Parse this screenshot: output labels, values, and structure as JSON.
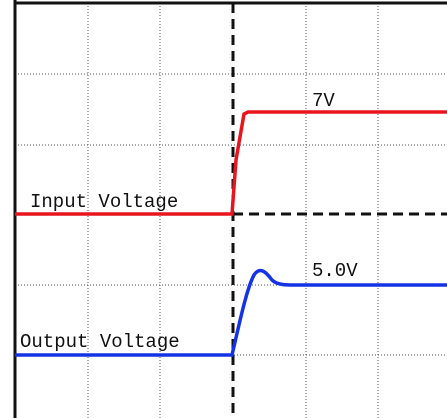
{
  "traces": [
    {
      "name": "Input Voltage",
      "level_label": "7V"
    },
    {
      "name": "Output Voltage",
      "level_label": "5.0V"
    }
  ]
}
